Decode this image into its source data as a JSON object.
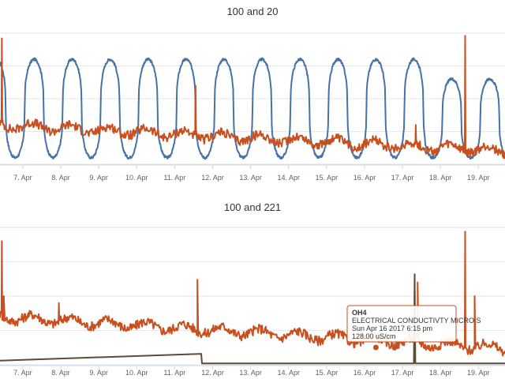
{
  "chart_data": [
    {
      "type": "line",
      "title": "100 and 20",
      "categories": [
        "7. Apr",
        "8. Apr",
        "9. Apr",
        "10. Apr",
        "11. Apr",
        "12. Apr",
        "13. Apr",
        "14. Apr",
        "15. Apr",
        "16. Apr",
        "17. Apr",
        "18. Apr",
        "19. Apr"
      ],
      "x_range": [
        6.4,
        19.7
      ],
      "ylim": [
        0,
        100
      ],
      "grid": true,
      "series": [
        {
          "color": "#4572a7",
          "shape": "daily-cycle",
          "low": 5,
          "high": 80,
          "phase": 0.3,
          "end_high_from_day": 17.6,
          "end_high_value": 65
        },
        {
          "color": "#c8501e",
          "shape": "noisy",
          "start_value": 30,
          "end_value": 10,
          "spikes": [
            {
              "x": 6.45,
              "y": 96
            },
            {
              "x": 11.55,
              "y": 60
            },
            {
              "x": 18.65,
              "y": 98
            },
            {
              "x": 17.35,
              "y": 30
            }
          ]
        }
      ]
    },
    {
      "type": "line",
      "title": "100 and 221",
      "categories": [
        "7. Apr",
        "8. Apr",
        "9. Apr",
        "10. Apr",
        "11. Apr",
        "12. Apr",
        "13. Apr",
        "14. Apr",
        "15. Apr",
        "16. Apr",
        "17. Apr",
        "18. Apr",
        "19. Apr"
      ],
      "x_range": [
        6.4,
        19.7
      ],
      "ylim": [
        0,
        100
      ],
      "grid": true,
      "series": [
        {
          "color": "#c8501e",
          "shape": "noisy",
          "start_value": 35,
          "end_value": 12,
          "spikes": [
            {
              "x": 6.45,
              "y": 90
            },
            {
              "x": 6.5,
              "y": 50
            },
            {
              "x": 7.95,
              "y": 45
            },
            {
              "x": 11.6,
              "y": 62
            },
            {
              "x": 15.95,
              "y": 24
            },
            {
              "x": 18.65,
              "y": 97
            },
            {
              "x": 17.4,
              "y": 60
            },
            {
              "x": 18.9,
              "y": 50
            }
          ]
        },
        {
          "color": "#5e4b35",
          "shape": "step",
          "points": [
            [
              6.4,
              3
            ],
            [
              11.7,
              8
            ],
            [
              11.72,
              1
            ],
            [
              17.3,
              1
            ],
            [
              17.32,
              66
            ],
            [
              17.34,
              1
            ],
            [
              19.7,
              1
            ]
          ]
        }
      ],
      "tooltip": {
        "name": "OH4",
        "series_label": "ELECTRICAL CONDUCTIVTY MICRO S",
        "date": "Sun Apr 16 2017 6:15 pm",
        "value": "128.00 uS/cm",
        "x": 16.3
      }
    }
  ]
}
